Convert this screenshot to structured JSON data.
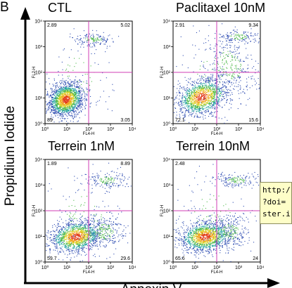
{
  "figure": {
    "panel_letter": "B",
    "y_axis_label": "Propidium Iodide",
    "x_axis_label": "Annexin V"
  },
  "chart_data": [
    {
      "type": "scatter",
      "title": "CTL",
      "xlabel": "FL4-H",
      "ylabel": "FL2-H",
      "xlim": [
        1,
        10000
      ],
      "ylim": [
        1,
        10000
      ],
      "scale": "log",
      "ticks": [
        "10⁰",
        "10¹",
        "10²",
        "10³",
        "10⁴"
      ],
      "gates": {
        "x": 100,
        "y": 100
      },
      "quadrants": {
        "upper_left": "2.89",
        "upper_right": "5.02",
        "lower_left": "89",
        "lower_right": "3.05"
      }
    },
    {
      "type": "scatter",
      "title": "Paclitaxel 10nM",
      "xlabel": "FL4-H",
      "ylabel": "FL2-H",
      "xlim": [
        1,
        10000
      ],
      "ylim": [
        1,
        10000
      ],
      "scale": "log",
      "ticks": [
        "10⁰",
        "10¹",
        "10²",
        "10³",
        "10⁴"
      ],
      "gates": {
        "x": 100,
        "y": 100
      },
      "quadrants": {
        "upper_left": "2.91",
        "upper_right": "9.34",
        "lower_left": "72.1",
        "lower_right": "15.6"
      }
    },
    {
      "type": "scatter",
      "title": "Terrein 1nM",
      "xlabel": "FL4-H",
      "ylabel": "FL2-H",
      "xlim": [
        1,
        10000
      ],
      "ylim": [
        1,
        10000
      ],
      "scale": "log",
      "ticks": [
        "10⁰",
        "10¹",
        "10²",
        "10³",
        "10⁴"
      ],
      "gates": {
        "x": 100,
        "y": 100
      },
      "quadrants": {
        "upper_left": "1.89",
        "upper_right": "8.89",
        "lower_left": "59.7",
        "lower_right": "29.6"
      }
    },
    {
      "type": "scatter",
      "title": "Terrein 10nM",
      "xlabel": "FL4-H",
      "ylabel": "FL2-H",
      "xlim": [
        1,
        10000
      ],
      "ylim": [
        1,
        10000
      ],
      "scale": "log",
      "ticks": [
        "10⁰",
        "10¹",
        "10²",
        "10³",
        "10⁴"
      ],
      "gates": {
        "x": 100,
        "y": 100
      },
      "quadrants": {
        "upper_left": "2.48",
        "upper_right": "",
        "lower_left": "65.6",
        "lower_right": "24"
      }
    }
  ],
  "tooltip": {
    "lines": [
      "http:/",
      "?doi=",
      "ster.i"
    ]
  },
  "colors": {
    "gate": "#d23cb4",
    "axis_arrow": "#000000",
    "density_low": "#1f3c9c",
    "density_mid": "#2aa868",
    "density_high": "#e8541c"
  }
}
